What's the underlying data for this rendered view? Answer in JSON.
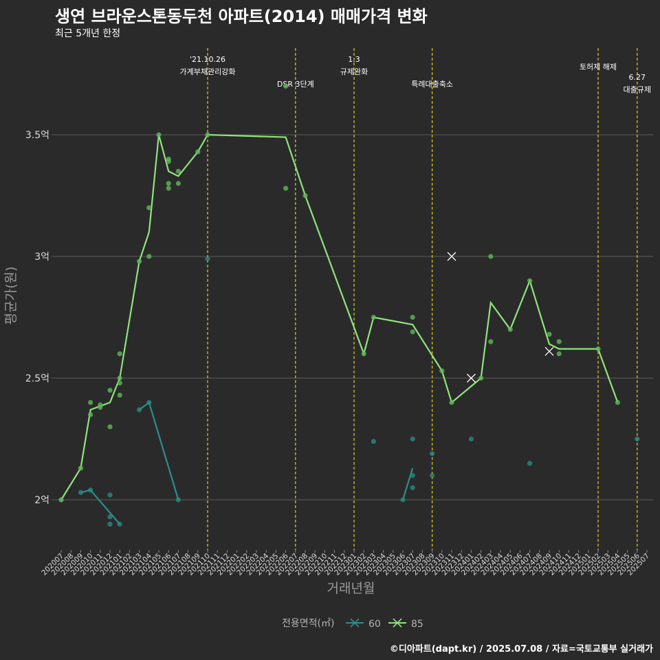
{
  "title": "생연 브라운스톤동두천 아파트(2014) 매매가격 변화",
  "subtitle": "최근 5개년 한정",
  "caption": "©디아파트(dapt.kr) / 2025.07.08 / 자료=국토교통부 실거래가",
  "chart_data": {
    "type": "line",
    "xlabel": "거래년월",
    "ylabel": "평균가(원)",
    "ylim": [
      1.8,
      3.85
    ],
    "yticks": [
      2.0,
      2.5,
      3.0,
      3.5
    ],
    "ytick_labels": [
      "2억",
      "2.5억",
      "3억",
      "3.5억"
    ],
    "categories": [
      "202007",
      "202008",
      "202009",
      "202010",
      "202011",
      "202012",
      "202101",
      "202102",
      "202103",
      "202104",
      "202105",
      "202106",
      "202107",
      "202108",
      "202109",
      "202110",
      "202111",
      "202112",
      "202201",
      "202202",
      "202203",
      "202204",
      "202205",
      "202206",
      "202207",
      "202208",
      "202209",
      "202210",
      "202211",
      "202212",
      "202301",
      "202302",
      "202303",
      "202304",
      "202305",
      "202306",
      "202307",
      "202308",
      "202309",
      "202310",
      "202311",
      "202312",
      "202401",
      "202402",
      "202403",
      "202404",
      "202405",
      "202406",
      "202407",
      "202408",
      "202409",
      "202410",
      "202411",
      "202412",
      "202501",
      "202502",
      "202503",
      "202504",
      "202505",
      "202506",
      "202507"
    ],
    "legend_title": "전용면적(㎡)",
    "legend_position": "bottom",
    "colors": {
      "s60": "#2a8f8a",
      "s85": "#8ee57a",
      "annot_line": "#e0d21d",
      "grid": "#5d5c5d",
      "axis_text": "#dddddd",
      "axis_title": "#9a9a9a"
    },
    "series": [
      {
        "name": "60",
        "line_segments": [
          [
            [
              "202007",
              2.0
            ]
          ],
          [
            [
              "202009",
              2.03
            ],
            [
              "202010",
              2.04
            ],
            [
              "202101",
              1.9
            ]
          ],
          [
            [
              "202103",
              2.37
            ],
            [
              "202104",
              2.4
            ],
            [
              "202107",
              2.0
            ]
          ],
          [
            [
              "202306",
              2.0
            ],
            [
              "202307",
              2.13
            ]
          ]
        ],
        "points": [
          [
            "202007",
            2.0
          ],
          [
            "202009",
            2.03
          ],
          [
            "202010",
            2.04
          ],
          [
            "202012",
            2.02
          ],
          [
            "202012",
            1.93
          ],
          [
            "202012",
            1.9
          ],
          [
            "202101",
            1.9
          ],
          [
            "202103",
            2.37
          ],
          [
            "202104",
            2.4
          ],
          [
            "202107",
            2.0
          ],
          [
            "202110",
            2.99
          ],
          [
            "202303",
            2.24
          ],
          [
            "202306",
            2.0
          ],
          [
            "202307",
            2.05
          ],
          [
            "202307",
            2.1
          ],
          [
            "202307",
            2.25
          ],
          [
            "202309",
            2.1
          ],
          [
            "202309",
            2.19
          ],
          [
            "202401",
            2.25
          ],
          [
            "202407",
            2.15
          ],
          [
            "202506",
            2.25
          ]
        ]
      },
      {
        "name": "85",
        "line": [
          [
            "202007",
            2.0
          ],
          [
            "202009",
            2.13
          ],
          [
            "202010",
            2.37
          ],
          [
            "202012",
            2.4
          ],
          [
            "202101",
            2.5
          ],
          [
            "202103",
            2.98
          ],
          [
            "202104",
            3.1
          ],
          [
            "202105",
            3.5
          ],
          [
            "202106",
            3.35
          ],
          [
            "202107",
            3.33
          ],
          [
            "202109",
            3.43
          ],
          [
            "202110",
            3.5
          ],
          [
            "202206",
            3.49
          ],
          [
            "202208",
            3.25
          ],
          [
            "202302",
            2.6
          ],
          [
            "202303",
            2.75
          ],
          [
            "202307",
            2.72
          ],
          [
            "202310",
            2.53
          ],
          [
            "202311",
            2.4
          ],
          [
            "202402",
            2.5
          ],
          [
            "202403",
            2.81
          ],
          [
            "202405",
            2.7
          ],
          [
            "202407",
            2.9
          ],
          [
            "202409",
            2.64
          ],
          [
            "202410",
            2.62
          ],
          [
            "202502",
            2.62
          ],
          [
            "202504",
            2.4
          ]
        ],
        "points": [
          [
            "202007",
            2.0
          ],
          [
            "202009",
            2.13
          ],
          [
            "202010",
            2.35
          ],
          [
            "202010",
            2.4
          ],
          [
            "202011",
            2.38
          ],
          [
            "202011",
            2.39
          ],
          [
            "202012",
            2.3
          ],
          [
            "202012",
            2.45
          ],
          [
            "202101",
            2.43
          ],
          [
            "202101",
            2.48
          ],
          [
            "202101",
            2.5
          ],
          [
            "202101",
            2.6
          ],
          [
            "202103",
            2.98
          ],
          [
            "202104",
            3.0
          ],
          [
            "202104",
            3.2
          ],
          [
            "202105",
            3.5
          ],
          [
            "202106",
            3.28
          ],
          [
            "202106",
            3.3
          ],
          [
            "202106",
            3.39
          ],
          [
            "202106",
            3.4
          ],
          [
            "202107",
            3.3
          ],
          [
            "202107",
            3.35
          ],
          [
            "202109",
            3.43
          ],
          [
            "202110",
            3.5
          ],
          [
            "202206",
            3.28
          ],
          [
            "202206",
            3.7
          ],
          [
            "202208",
            3.25
          ],
          [
            "202302",
            2.6
          ],
          [
            "202303",
            2.75
          ],
          [
            "202307",
            2.69
          ],
          [
            "202307",
            2.75
          ],
          [
            "202310",
            2.53
          ],
          [
            "202311",
            2.4
          ],
          [
            "202402",
            2.5
          ],
          [
            "202403",
            2.65
          ],
          [
            "202403",
            3.0
          ],
          [
            "202405",
            2.7
          ],
          [
            "202407",
            2.9
          ],
          [
            "202409",
            2.68
          ],
          [
            "202410",
            2.6
          ],
          [
            "202410",
            2.65
          ],
          [
            "202502",
            2.62
          ],
          [
            "202504",
            2.4
          ]
        ],
        "cancelled": [
          [
            "202311",
            3.0
          ],
          [
            "202401",
            2.5
          ],
          [
            "202409",
            2.61
          ]
        ]
      }
    ],
    "annotations": [
      {
        "x": "202110",
        "lines": [
          "'21.10.26",
          "가계부채관리강화"
        ],
        "level": 0
      },
      {
        "x": "202207",
        "lines": [
          "DSR 3단계"
        ],
        "level": 2
      },
      {
        "x": "202301",
        "lines": [
          "1.3",
          "규제완화"
        ],
        "level": 0
      },
      {
        "x": "202309",
        "lines": [
          "특례대출축소"
        ],
        "level": 2
      },
      {
        "x": "202502",
        "lines": [
          "토허제 해제"
        ],
        "level": 1
      },
      {
        "x": "202506",
        "lines": [
          "6.27",
          "대출규제"
        ],
        "level": 3
      }
    ]
  }
}
